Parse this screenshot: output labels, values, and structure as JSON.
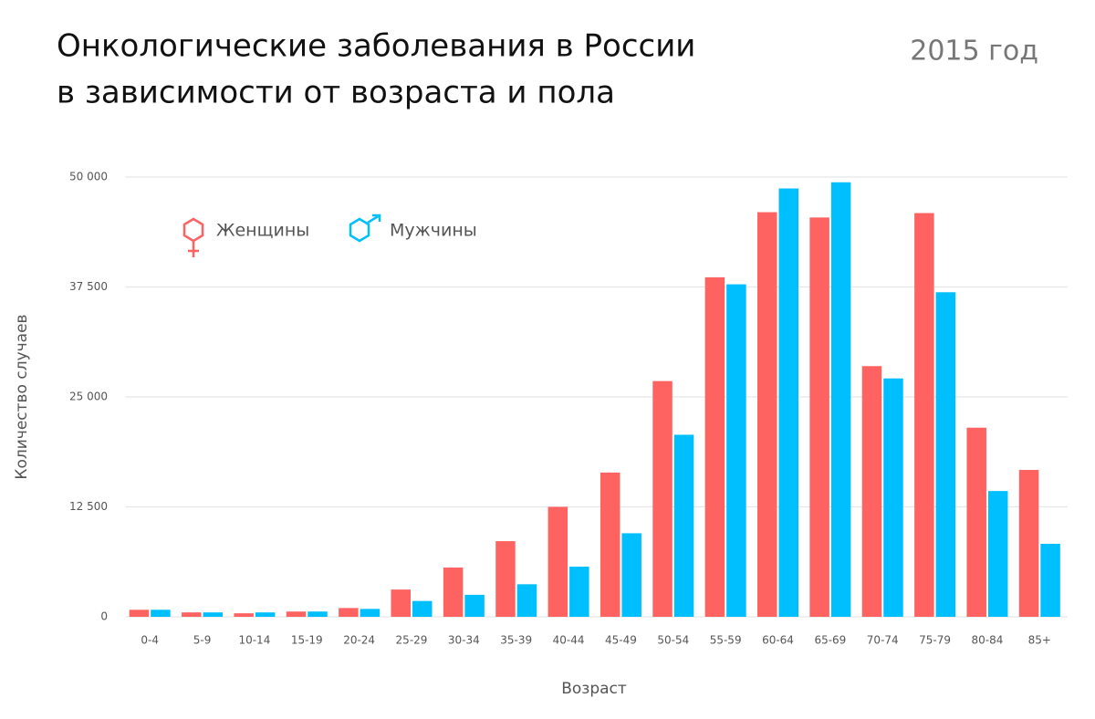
{
  "chart_data": {
    "type": "bar",
    "title_lines": [
      "Онкологические заболевания в России",
      "в зависимости от возраста и пола"
    ],
    "subtitle": "2015 год",
    "x_label": "Возраст",
    "y_label": "Количество случаев",
    "categories": [
      "0-4",
      "5-9",
      "10-14",
      "15-19",
      "20-24",
      "25-29",
      "30-34",
      "35-39",
      "40-44",
      "45-49",
      "50-54",
      "55-59",
      "60-64",
      "65-69",
      "70-74",
      "75-79",
      "80-84",
      "85+"
    ],
    "series": [
      {
        "name": "Женщины",
        "color": "#ff6361",
        "values": [
          800,
          500,
          400,
          600,
          1000,
          3100,
          5600,
          8600,
          12500,
          16400,
          26800,
          38600,
          46000,
          45400,
          28500,
          45900,
          21500,
          16700
        ]
      },
      {
        "name": "Мужчины",
        "color": "#00bfff",
        "values": [
          800,
          500,
          500,
          600,
          900,
          1800,
          2500,
          3700,
          5700,
          9500,
          20700,
          37800,
          48700,
          49400,
          27100,
          36900,
          14300,
          8300
        ]
      }
    ],
    "ylim": [
      0,
      50000
    ],
    "yticks": [
      0,
      {
        "value": 12500,
        "label": "12 500"
      },
      {
        "value": 25000,
        "label": "25 000"
      },
      {
        "value": 37500,
        "label": "37 500"
      },
      {
        "value": 50000,
        "label": "50 000"
      }
    ],
    "grid": true
  }
}
